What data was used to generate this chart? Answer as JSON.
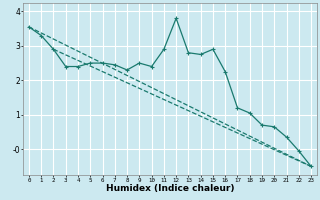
{
  "xlabel": "Humidex (Indice chaleur)",
  "ylabel": "",
  "bg_color": "#cce9f0",
  "grid_color": "#ffffff",
  "line_color": "#1a7a6e",
  "xlim": [
    -0.5,
    23.5
  ],
  "ylim": [
    -0.75,
    4.25
  ],
  "curve_x": [
    0,
    1,
    2,
    3,
    4,
    5,
    6,
    7,
    8,
    9,
    10,
    11,
    12,
    13,
    14,
    15,
    16,
    17,
    18,
    19,
    20,
    21,
    22,
    23
  ],
  "curve_y": [
    3.55,
    3.3,
    2.9,
    2.4,
    2.4,
    2.5,
    2.5,
    2.45,
    2.3,
    2.5,
    2.4,
    2.9,
    3.8,
    2.8,
    2.75,
    2.9,
    2.25,
    1.2,
    1.05,
    0.7,
    0.65,
    0.35,
    -0.05,
    -0.5
  ],
  "line1_x": [
    0,
    23
  ],
  "line1_y": [
    3.55,
    -0.5
  ],
  "line2_x": [
    2,
    23
  ],
  "line2_y": [
    2.9,
    -0.5
  ],
  "marker_size": 3.0,
  "linewidth": 0.9
}
